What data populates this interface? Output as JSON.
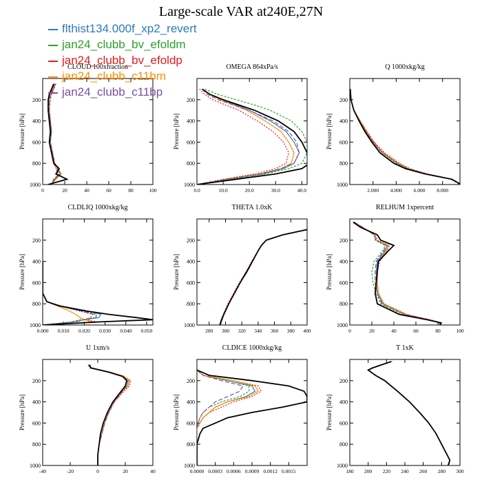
{
  "title": "Large-scale VAR at240E,27N",
  "series": [
    {
      "name": "flthist134.000f_xp2_revert",
      "color": "#2b7bba",
      "dash": ""
    },
    {
      "name": "jan24_clubb_bv_efoldm",
      "color": "#2ca02c",
      "dash": "3,2"
    },
    {
      "name": "jan24_clubb_bv_efoldp",
      "color": "#e41a1c",
      "dash": "2,2"
    },
    {
      "name": "jan24_clubb_c11bm",
      "color": "#ff8c00",
      "dash": ""
    },
    {
      "name": "jan24_clubb_c11bp",
      "color": "#7b4fa0",
      "dash": "6,3"
    }
  ],
  "control": {
    "color": "#000000"
  },
  "chart_data": [
    {
      "type": "line",
      "title": "CLOUD  100xfraction",
      "ylabel": "Pressure [hPa]",
      "xlim": [
        0,
        100
      ],
      "ylim": [
        0,
        1000
      ],
      "xticks": [
        0,
        20,
        40,
        60,
        80,
        100
      ],
      "xtick_labels": [
        "0",
        "20",
        "40",
        "60",
        "80",
        "100"
      ],
      "yticks": [
        200,
        400,
        600,
        800,
        1000
      ],
      "ytick_labels": [
        "200",
        "400",
        "600",
        "800",
        "1000"
      ],
      "pressure": [
        50,
        100,
        150,
        200,
        300,
        400,
        500,
        600,
        700,
        800,
        850,
        900,
        950,
        1000
      ],
      "control": [
        10,
        8,
        6,
        5,
        5,
        6,
        7,
        6,
        8,
        10,
        15,
        12,
        22,
        5
      ],
      "members": [
        [
          11,
          9,
          7,
          6,
          6,
          7,
          8,
          7,
          9,
          11,
          14,
          16,
          11,
          8
        ],
        [
          12,
          10,
          8,
          7,
          6,
          7,
          8,
          7,
          9,
          10,
          13,
          15,
          10,
          8
        ],
        [
          12,
          10,
          8,
          6,
          6,
          7,
          7,
          7,
          9,
          10,
          12,
          14,
          11,
          9
        ],
        [
          11,
          9,
          7,
          6,
          6,
          6,
          7,
          7,
          9,
          11,
          14,
          17,
          12,
          8
        ],
        [
          11,
          9,
          7,
          6,
          6,
          7,
          8,
          7,
          9,
          11,
          13,
          15,
          10,
          8
        ]
      ]
    },
    {
      "type": "line",
      "title": "OMEGA  864xPa/s",
      "ylabel": "Pressure [hPa]",
      "xlim": [
        0,
        42
      ],
      "ylim": [
        0,
        1000
      ],
      "xticks": [
        0,
        10,
        20,
        30,
        40
      ],
      "xtick_labels": [
        "0.0",
        "10.0",
        "20.0",
        "30.0",
        "40.0"
      ],
      "yticks": [
        200,
        400,
        600,
        800,
        1000
      ],
      "ytick_labels": [
        "200",
        "400",
        "600",
        "800",
        "1000"
      ],
      "pressure": [
        100,
        150,
        200,
        250,
        300,
        400,
        500,
        600,
        700,
        800,
        850,
        900,
        950,
        1000
      ],
      "control": [
        2,
        5,
        10,
        16,
        22,
        31,
        37,
        40,
        42,
        43,
        40,
        30,
        15,
        0
      ],
      "members": [
        [
          2,
          5,
          9,
          15,
          20,
          28,
          34,
          37,
          39,
          37,
          33,
          25,
          12,
          0
        ],
        [
          3,
          8,
          15,
          22,
          28,
          36,
          40,
          42,
          42,
          40,
          35,
          26,
          12,
          0
        ],
        [
          1,
          3,
          6,
          11,
          16,
          23,
          29,
          33,
          35,
          34,
          30,
          22,
          10,
          0
        ],
        [
          2,
          5,
          9,
          14,
          19,
          26,
          32,
          35,
          37,
          36,
          32,
          24,
          11,
          0
        ],
        [
          2,
          4,
          8,
          14,
          20,
          29,
          35,
          38,
          39,
          37,
          32,
          24,
          11,
          0
        ]
      ]
    },
    {
      "type": "line",
      "title": "Q  1000xkg/kg",
      "ylabel": "Pressure [hPa]",
      "xlim": [
        0,
        9.5
      ],
      "ylim": [
        0,
        1000
      ],
      "xticks": [
        2,
        4,
        6,
        8
      ],
      "xtick_labels": [
        "2.000",
        "4.000",
        "6.000",
        "8.000"
      ],
      "yticks": [
        200,
        400,
        600,
        800,
        1000
      ],
      "ytick_labels": [
        "200",
        "400",
        "600",
        "800",
        "1000"
      ],
      "pressure": [
        100,
        200,
        300,
        400,
        500,
        600,
        700,
        800,
        850,
        900,
        950,
        1000
      ],
      "control": [
        0.05,
        0.1,
        0.35,
        0.8,
        1.3,
        1.9,
        2.6,
        3.8,
        4.8,
        6.5,
        8.8,
        9.6
      ],
      "members": [
        [
          0.05,
          0.1,
          0.35,
          0.85,
          1.4,
          2.0,
          2.8,
          4.1,
          5.0,
          6.6,
          8.8,
          9.6
        ],
        [
          0.05,
          0.1,
          0.35,
          0.85,
          1.4,
          2.1,
          2.8,
          4.0,
          5.0,
          6.6,
          8.7,
          9.5
        ],
        [
          0.05,
          0.1,
          0.35,
          0.9,
          1.5,
          2.1,
          3.0,
          4.3,
          5.2,
          6.7,
          8.8,
          9.6
        ],
        [
          0.05,
          0.1,
          0.35,
          0.9,
          1.45,
          2.0,
          2.9,
          4.2,
          5.1,
          6.6,
          8.8,
          9.6
        ],
        [
          0.05,
          0.1,
          0.35,
          0.85,
          1.4,
          2.0,
          2.8,
          4.1,
          5.0,
          6.6,
          8.8,
          9.6
        ]
      ]
    },
    {
      "type": "line",
      "title": "CLDLIQ  1000xkg/kg",
      "ylabel": "Pressure [hPa]",
      "xlim": [
        0,
        0.053
      ],
      "ylim": [
        0,
        1000
      ],
      "xticks": [
        0,
        0.01,
        0.02,
        0.03,
        0.04,
        0.05
      ],
      "xtick_labels": [
        "0.000",
        "0.010",
        "0.020",
        "0.030",
        "0.040",
        "0.050"
      ],
      "yticks": [
        200,
        400,
        600,
        800,
        1000
      ],
      "ytick_labels": [
        "200",
        "400",
        "600",
        "800",
        "1000"
      ],
      "pressure": [
        400,
        600,
        700,
        780,
        820,
        860,
        900,
        930,
        950,
        970,
        1000
      ],
      "control": [
        0,
        0,
        0,
        0.002,
        0.008,
        0.018,
        0.032,
        0.045,
        0.053,
        0.028,
        0
      ],
      "members": [
        [
          0,
          0,
          0,
          0.002,
          0.009,
          0.02,
          0.028,
          0.027,
          0.02,
          0.015,
          0
        ],
        [
          0,
          0,
          0,
          0.002,
          0.008,
          0.018,
          0.026,
          0.025,
          0.018,
          0.014,
          0
        ],
        [
          0,
          0,
          0,
          0.002,
          0.008,
          0.016,
          0.024,
          0.023,
          0.021,
          0.026,
          0
        ],
        [
          0,
          0,
          0,
          0.002,
          0.007,
          0.012,
          0.016,
          0.018,
          0.02,
          0.024,
          0
        ],
        [
          0,
          0,
          0,
          0.002,
          0.008,
          0.017,
          0.025,
          0.026,
          0.02,
          0.016,
          0
        ]
      ]
    },
    {
      "type": "line",
      "title": "THETA  1.0xK",
      "ylabel": "Pressure [hPa]",
      "xlim": [
        265,
        400
      ],
      "ylim": [
        0,
        1000
      ],
      "xticks": [
        280,
        300,
        320,
        340,
        360,
        380,
        400
      ],
      "xtick_labels": [
        "280",
        "300",
        "320",
        "340",
        "360",
        "380",
        "400"
      ],
      "yticks": [
        200,
        400,
        600,
        800,
        1000
      ],
      "ytick_labels": [
        "200",
        "400",
        "600",
        "800",
        "1000"
      ],
      "pressure": [
        100,
        150,
        200,
        250,
        300,
        400,
        500,
        600,
        700,
        800,
        900,
        950,
        1000
      ],
      "control": [
        400,
        370,
        350,
        344,
        340,
        333,
        326,
        318,
        311,
        304,
        298,
        295,
        293
      ],
      "members": [
        [
          400,
          370,
          350,
          344,
          340,
          333,
          325,
          318,
          311,
          304,
          298,
          296,
          294
        ],
        [
          400,
          370,
          350,
          344,
          340,
          333,
          326,
          318,
          311,
          304,
          298,
          296,
          294
        ],
        [
          400,
          370,
          350,
          344,
          340,
          332,
          325,
          317,
          310,
          303,
          297,
          295,
          294
        ],
        [
          400,
          370,
          350,
          344,
          340,
          333,
          325,
          318,
          311,
          304,
          298,
          296,
          294
        ],
        [
          400,
          370,
          350,
          344,
          340,
          333,
          325,
          318,
          311,
          304,
          298,
          296,
          294
        ]
      ]
    },
    {
      "type": "line",
      "title": "RELHUM  1xpercent",
      "ylabel": "Pressure [hPa]",
      "xlim": [
        0,
        100
      ],
      "ylim": [
        0,
        1000
      ],
      "xticks": [
        0,
        20,
        40,
        60,
        80,
        100
      ],
      "xtick_labels": [
        "0",
        "20",
        "40",
        "60",
        "80",
        "100"
      ],
      "yticks": [
        200,
        400,
        600,
        800,
        1000
      ],
      "ytick_labels": [
        "200",
        "400",
        "600",
        "800",
        "1000"
      ],
      "pressure": [
        30,
        80,
        150,
        200,
        250,
        300,
        400,
        500,
        600,
        700,
        800,
        900,
        950,
        980,
        1000
      ],
      "control": [
        3,
        10,
        25,
        28,
        40,
        35,
        26,
        25,
        24,
        23,
        25,
        45,
        70,
        83,
        82
      ],
      "members": [
        [
          4,
          12,
          22,
          24,
          34,
          32,
          25,
          24,
          24,
          25,
          30,
          50,
          72,
          82,
          80
        ],
        [
          4,
          12,
          22,
          23,
          32,
          30,
          22,
          20,
          21,
          24,
          28,
          48,
          71,
          81,
          80
        ],
        [
          4,
          11,
          23,
          25,
          36,
          34,
          27,
          25,
          25,
          26,
          31,
          52,
          73,
          83,
          81
        ],
        [
          4,
          12,
          22,
          24,
          35,
          33,
          26,
          25,
          25,
          26,
          31,
          51,
          72,
          82,
          80
        ],
        [
          4,
          12,
          22,
          24,
          33,
          31,
          24,
          23,
          23,
          25,
          29,
          50,
          72,
          82,
          80
        ]
      ]
    },
    {
      "type": "line",
      "title": "U  1xm/s",
      "ylabel": "Pressure [hPa]",
      "xlim": [
        -40,
        40
      ],
      "ylim": [
        0,
        1000
      ],
      "xticks": [
        -40,
        -20,
        0,
        20,
        40
      ],
      "xtick_labels": [
        "-40",
        "-20",
        "0",
        "20",
        "40"
      ],
      "yticks": [
        200,
        400,
        600,
        800,
        1000
      ],
      "ytick_labels": [
        "200",
        "400",
        "600",
        "800",
        "1000"
      ],
      "pressure": [
        50,
        80,
        120,
        160,
        200,
        250,
        300,
        400,
        500,
        600,
        700,
        800,
        900,
        1000
      ],
      "control": [
        -6,
        -5,
        8,
        18,
        21,
        20,
        17,
        11,
        7,
        4,
        2,
        1,
        0,
        0
      ],
      "members": [
        [
          -7,
          -5,
          9,
          19,
          23,
          22,
          18,
          12,
          8,
          5,
          3,
          1,
          0,
          0
        ],
        [
          -7,
          -6,
          8,
          18,
          22,
          21,
          18,
          12,
          8,
          5,
          3,
          1,
          0,
          0
        ],
        [
          -7,
          -5,
          9,
          19,
          24,
          23,
          19,
          12,
          8,
          5,
          3,
          1,
          0,
          0
        ],
        [
          -7,
          -5,
          9,
          19,
          23,
          22,
          18,
          12,
          8,
          5,
          3,
          1,
          0,
          0
        ],
        [
          -7,
          -5,
          8,
          18,
          22,
          21,
          18,
          12,
          8,
          5,
          3,
          1,
          0,
          0
        ]
      ]
    },
    {
      "type": "line",
      "title": "CLDICE  1000xkg/kg",
      "ylabel": "Pressure [hPa]",
      "xlim": [
        0,
        0.0018
      ],
      "ylim": [
        0,
        1000
      ],
      "xticks": [
        0,
        0.0003,
        0.0006,
        0.0009,
        0.0012,
        0.0015
      ],
      "xtick_labels": [
        "0.0000",
        "0.0003",
        "0.0006",
        "0.0009",
        "0.0012",
        "0.0015"
      ],
      "yticks": [
        200,
        400,
        600,
        800,
        1000
      ],
      "ytick_labels": [
        "200",
        "400",
        "600",
        "800",
        "1000"
      ],
      "pressure": [
        100,
        150,
        200,
        250,
        300,
        350,
        400,
        450,
        500,
        550,
        600,
        650,
        700,
        800,
        1000
      ],
      "control": [
        0,
        0.0002,
        0.0009,
        0.0015,
        0.00175,
        0.0018,
        0.0018,
        0.0014,
        0.0009,
        0.0005,
        0.0003,
        0.0001,
        5e-05,
        0,
        0
      ],
      "members": [
        [
          0,
          0.0001,
          0.0005,
          0.0009,
          0.00095,
          0.0008,
          0.0005,
          0.0003,
          0.0002,
          0.0001,
          5e-05,
          0,
          0,
          0,
          0
        ],
        [
          0,
          0.0001,
          0.0005,
          0.00085,
          0.00085,
          0.0007,
          0.0004,
          0.0002,
          0.0001,
          5e-05,
          2e-05,
          0,
          0,
          0,
          0
        ],
        [
          0,
          0.0001,
          0.0006,
          0.001,
          0.00105,
          0.0009,
          0.0006,
          0.0004,
          0.0002,
          0.0001,
          5e-05,
          0,
          0,
          0,
          0
        ],
        [
          0,
          0.0001,
          0.0006,
          0.00095,
          0.001,
          0.00085,
          0.0005,
          0.0003,
          0.0002,
          0.0001,
          5e-05,
          0,
          0,
          0,
          0
        ],
        [
          0,
          0.0001,
          0.0004,
          0.00075,
          0.0007,
          0.0005,
          0.0003,
          0.0002,
          0.0001,
          5e-05,
          2e-05,
          0,
          0,
          0,
          0
        ]
      ]
    },
    {
      "type": "line",
      "title": "T  1xK",
      "ylabel": "Pressure [hPa]",
      "xlim": [
        180,
        300
      ],
      "ylim": [
        0,
        1000
      ],
      "xticks": [
        180,
        200,
        220,
        240,
        260,
        280,
        300
      ],
      "xtick_labels": [
        "180",
        "200",
        "220",
        "240",
        "260",
        "280",
        "300"
      ],
      "yticks": [
        200,
        400,
        600,
        800,
        1000
      ],
      "ytick_labels": [
        "200",
        "400",
        "600",
        "800",
        "1000"
      ],
      "pressure": [
        20,
        50,
        80,
        100,
        150,
        200,
        300,
        400,
        500,
        600,
        700,
        800,
        900,
        950,
        1000
      ],
      "control": [
        225,
        215,
        205,
        200,
        208,
        218,
        232,
        245,
        256,
        266,
        274,
        280,
        286,
        289,
        287
      ],
      "members": [
        [
          226,
          214,
          204,
          200,
          208,
          218,
          232,
          245,
          256,
          266,
          274,
          280,
          286,
          289,
          288
        ],
        [
          226,
          214,
          204,
          200,
          208,
          218,
          232,
          245,
          256,
          266,
          274,
          280,
          286,
          289,
          288
        ],
        [
          226,
          214,
          204,
          200,
          208,
          218,
          232,
          245,
          256,
          266,
          274,
          280,
          286,
          289,
          288
        ],
        [
          226,
          214,
          204,
          200,
          208,
          218,
          232,
          245,
          256,
          266,
          274,
          280,
          286,
          289,
          288
        ],
        [
          226,
          214,
          204,
          200,
          208,
          218,
          232,
          245,
          256,
          266,
          274,
          280,
          286,
          289,
          288
        ]
      ]
    }
  ]
}
